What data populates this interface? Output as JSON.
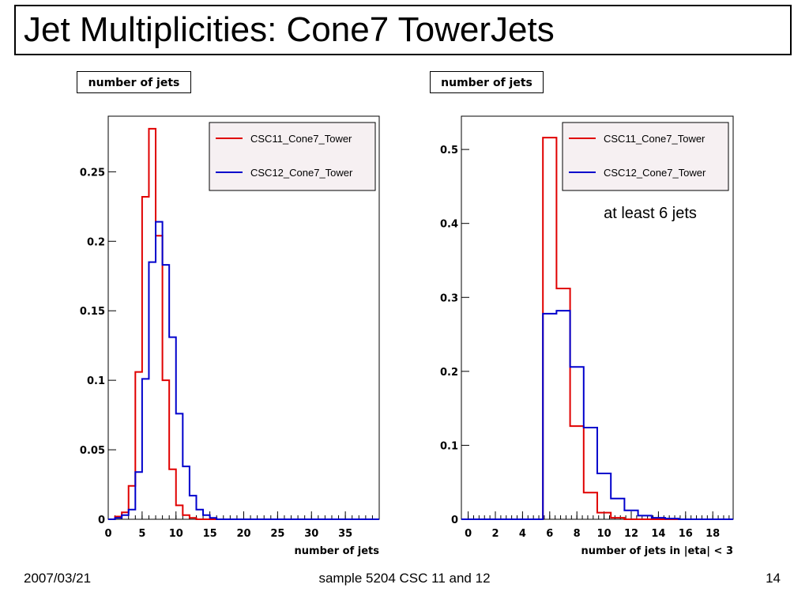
{
  "slide": {
    "title": "Jet Multiplicities: Cone7 TowerJets",
    "footer_date": "2007/03/21",
    "footer_center": "sample 5204 CSC 11 and 12",
    "page_number": "14"
  },
  "colors": {
    "csc11": "#e00000",
    "csc12": "#0000cc"
  },
  "chart_data": [
    {
      "type": "histogram-step",
      "title": "number of jets",
      "xlabel": "number of jets",
      "ylabel": "",
      "xlim": [
        0,
        40
      ],
      "ylim": [
        0,
        0.29
      ],
      "xticks": [
        0,
        5,
        10,
        15,
        20,
        25,
        30,
        35
      ],
      "yticks": [
        0,
        0.05,
        0.1,
        0.15,
        0.2,
        0.25
      ],
      "ytick_labels": [
        "0",
        "0.05",
        "0.1",
        "0.15",
        "0.2",
        "0.25"
      ],
      "bin_edges_start": 0,
      "bin_width": 1,
      "legend": {
        "position": "top-right",
        "entries": [
          "CSC11_Cone7_Tower",
          "CSC12_Cone7_Tower"
        ]
      },
      "series": [
        {
          "name": "CSC11_Cone7_Tower",
          "values": [
            0,
            0.002,
            0.005,
            0.024,
            0.106,
            0.232,
            0.281,
            0.204,
            0.1,
            0.036,
            0.01,
            0.003,
            0.001,
            0,
            0,
            0,
            0,
            0,
            0,
            0,
            0,
            0,
            0,
            0,
            0,
            0,
            0,
            0,
            0,
            0,
            0,
            0,
            0,
            0,
            0,
            0,
            0,
            0,
            0,
            0
          ]
        },
        {
          "name": "CSC12_Cone7_Tower",
          "values": [
            0,
            0.001,
            0.003,
            0.007,
            0.034,
            0.101,
            0.185,
            0.214,
            0.183,
            0.131,
            0.076,
            0.038,
            0.017,
            0.007,
            0.003,
            0.001,
            0,
            0,
            0,
            0,
            0,
            0,
            0,
            0,
            0,
            0,
            0,
            0,
            0,
            0,
            0,
            0,
            0,
            0,
            0,
            0,
            0,
            0,
            0,
            0
          ]
        }
      ]
    },
    {
      "type": "histogram-step",
      "title": "number of jets",
      "xlabel": "number of jets in |eta| < 3",
      "ylabel": "",
      "annotation": "at least 6 jets",
      "xlim": [
        -0.5,
        19.5
      ],
      "ylim": [
        0,
        0.545
      ],
      "xticks": [
        0,
        2,
        4,
        6,
        8,
        10,
        12,
        14,
        16,
        18
      ],
      "yticks": [
        0,
        0.1,
        0.2,
        0.3,
        0.4,
        0.5
      ],
      "ytick_labels": [
        "0",
        "0.1",
        "0.2",
        "0.3",
        "0.4",
        "0.5"
      ],
      "bin_edges_start": -0.5,
      "bin_width": 1,
      "legend": {
        "position": "top-right",
        "entries": [
          "CSC11_Cone7_Tower",
          "CSC12_Cone7_Tower"
        ]
      },
      "series": [
        {
          "name": "CSC11_Cone7_Tower",
          "values": [
            0,
            0,
            0,
            0,
            0,
            0,
            0.516,
            0.312,
            0.126,
            0.036,
            0.009,
            0.002,
            0,
            0,
            0,
            0,
            0,
            0,
            0,
            0
          ]
        },
        {
          "name": "CSC12_Cone7_Tower",
          "values": [
            0,
            0,
            0,
            0,
            0,
            0,
            0.278,
            0.282,
            0.206,
            0.124,
            0.062,
            0.028,
            0.012,
            0.005,
            0.002,
            0.001,
            0,
            0,
            0,
            0
          ]
        }
      ]
    }
  ]
}
